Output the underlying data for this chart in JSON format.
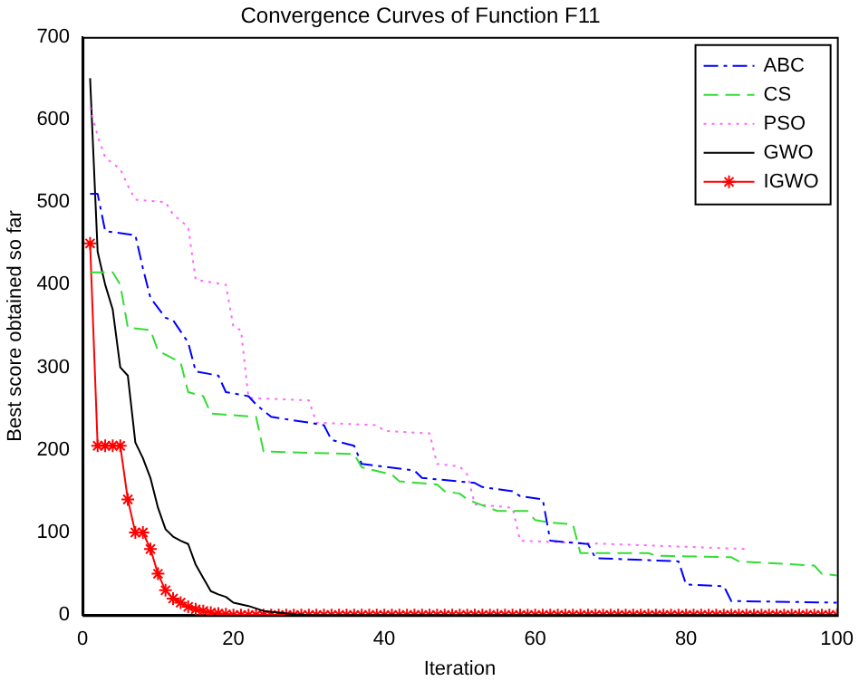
{
  "chart_data": {
    "type": "line",
    "title": "Convergence Curves of Function F11",
    "xlabel": "Iteration",
    "ylabel": "Best score obtained so far",
    "xlim": [
      0,
      100
    ],
    "xticks": [
      0,
      20,
      40,
      60,
      80,
      100
    ],
    "ylim": [
      0,
      700
    ],
    "yticks": [
      0,
      100,
      200,
      300,
      400,
      500,
      600,
      700
    ],
    "legend": "top right",
    "series": [
      {
        "name": "ABC",
        "color": "#0000ff",
        "line_style": "dashdot",
        "marker": "none",
        "x": [
          1,
          2,
          3,
          7,
          8,
          9,
          11,
          12,
          14,
          15,
          18,
          19,
          22,
          23,
          25,
          30,
          32,
          33,
          36,
          37,
          44,
          45,
          52,
          53,
          57,
          58,
          61,
          62,
          67,
          68,
          79,
          80,
          85,
          86,
          100
        ],
        "values": [
          510,
          510,
          465,
          460,
          420,
          384,
          360,
          357,
          330,
          295,
          290,
          270,
          265,
          255,
          240,
          233,
          230,
          212,
          205,
          183,
          175,
          166,
          160,
          155,
          150,
          144,
          140,
          90,
          86,
          69,
          65,
          37,
          35,
          17,
          15
        ]
      },
      {
        "name": "CS",
        "color": "#33dd33",
        "line_style": "dashed",
        "marker": "none",
        "x": [
          1,
          4,
          5,
          6,
          9,
          10,
          13,
          14,
          16,
          17,
          23,
          24,
          36,
          37,
          41,
          42,
          47,
          48,
          50,
          51,
          55,
          59,
          60,
          62,
          65,
          66,
          75,
          76,
          86,
          87,
          97,
          98,
          100
        ],
        "values": [
          415,
          415,
          400,
          348,
          345,
          320,
          306,
          270,
          265,
          244,
          240,
          198,
          195,
          179,
          170,
          162,
          158,
          150,
          147,
          140,
          126,
          126,
          115,
          112,
          110,
          75,
          75,
          72,
          70,
          65,
          60,
          50,
          48
        ]
      },
      {
        "name": "PSO",
        "color": "#ff66ff",
        "line_style": "dotted",
        "marker": "none",
        "x": [
          1,
          2,
          3,
          5,
          6,
          7,
          11,
          12,
          14,
          15,
          19,
          20,
          21,
          22,
          30,
          31,
          39,
          40,
          46,
          47,
          50,
          51,
          52,
          57,
          58,
          88
        ],
        "values": [
          615,
          580,
          554,
          540,
          520,
          503,
          500,
          485,
          470,
          406,
          400,
          349,
          345,
          263,
          260,
          233,
          230,
          223,
          220,
          183,
          180,
          170,
          134,
          130,
          90,
          80
        ]
      },
      {
        "name": "GWO",
        "color": "#000000",
        "line_style": "solid",
        "marker": "none",
        "x": [
          1,
          2,
          3,
          4,
          5,
          6,
          7,
          8,
          9,
          10,
          11,
          12,
          13,
          14,
          15,
          16,
          17,
          18,
          19,
          20,
          22,
          24,
          26,
          28,
          30,
          100
        ],
        "values": [
          650,
          440,
          400,
          370,
          300,
          290,
          209,
          190,
          166,
          130,
          104,
          95,
          90,
          86,
          61,
          45,
          29,
          25,
          22,
          15,
          11,
          5,
          3,
          1,
          0,
          0
        ]
      },
      {
        "name": "IGWO",
        "color": "#ff0000",
        "line_style": "solid",
        "marker": "cross",
        "x": [
          1,
          2,
          3,
          4,
          5,
          6,
          7,
          8,
          9,
          10,
          11,
          12,
          13,
          14,
          15,
          16,
          17,
          18,
          19,
          20,
          21,
          22,
          23,
          24,
          25,
          26,
          27,
          28,
          29,
          30,
          31,
          32,
          33,
          34,
          35,
          36,
          37,
          38,
          39,
          40,
          41,
          42,
          43,
          44,
          45,
          46,
          47,
          48,
          49,
          50,
          51,
          52,
          53,
          54,
          55,
          56,
          57,
          58,
          59,
          60,
          61,
          62,
          63,
          64,
          65,
          66,
          67,
          68,
          69,
          70,
          71,
          72,
          73,
          74,
          75,
          76,
          77,
          78,
          79,
          80,
          81,
          82,
          83,
          84,
          85,
          86,
          87,
          88,
          89,
          90,
          91,
          92,
          93,
          94,
          95,
          96,
          97,
          98,
          99,
          100
        ],
        "values": [
          450,
          205,
          205,
          205,
          205,
          140,
          100,
          100,
          80,
          50,
          30,
          20,
          15,
          10,
          7,
          5,
          3,
          2,
          1,
          0,
          0,
          0,
          0,
          0,
          0,
          0,
          0,
          0,
          0,
          0,
          0,
          0,
          0,
          0,
          0,
          0,
          0,
          0,
          0,
          0,
          0,
          0,
          0,
          0,
          0,
          0,
          0,
          0,
          0,
          0,
          0,
          0,
          0,
          0,
          0,
          0,
          0,
          0,
          0,
          0,
          0,
          0,
          0,
          0,
          0,
          0,
          0,
          0,
          0,
          0,
          0,
          0,
          0,
          0,
          0,
          0,
          0,
          0,
          0,
          0,
          0,
          0,
          0,
          0,
          0,
          0,
          0,
          0,
          0,
          0,
          0,
          0,
          0,
          0,
          0,
          0,
          0,
          0,
          0,
          0
        ]
      }
    ]
  }
}
